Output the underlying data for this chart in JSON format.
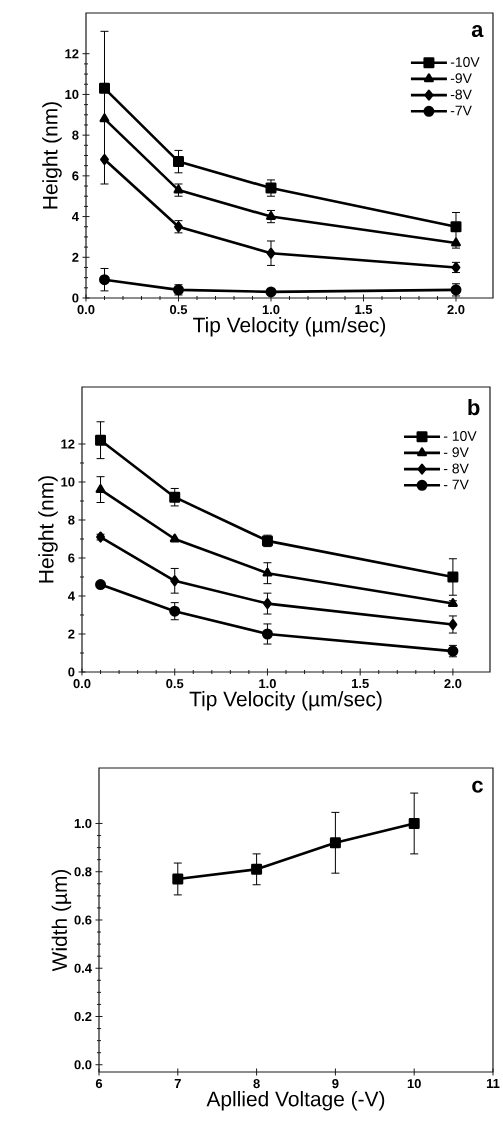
{
  "chart_data": [
    {
      "type": "line",
      "title": "a",
      "xlabel": "Tip Velocity (µm/sec)",
      "ylabel": "Height (nm)",
      "x": [
        0.1,
        0.5,
        1.0,
        2.0
      ],
      "xlim": [
        0,
        2.2
      ],
      "ylim": [
        0,
        14
      ],
      "xticks": [
        {
          "value": 0,
          "label": "0.0"
        },
        {
          "value": 0.5,
          "label": "0.5"
        },
        {
          "value": 1,
          "label": "1.0"
        },
        {
          "value": 1.5,
          "label": "1.5"
        },
        {
          "value": 2,
          "label": "2.0"
        }
      ],
      "yticks": [
        0,
        2,
        4,
        6,
        8,
        10,
        12
      ],
      "legend": "top right",
      "series": [
        {
          "name": "-10V",
          "color": "#000000",
          "marker": "square",
          "values": [
            10.3,
            6.7,
            5.4,
            3.5
          ],
          "errors": [
            [
              5.6,
              13.1
            ],
            0.55,
            0.4,
            [
              2.45,
              4.2
            ]
          ]
        },
        {
          "name": "-9V",
          "color": "#000000",
          "marker": "triangle",
          "values": [
            8.8,
            5.3,
            4.0,
            2.7
          ],
          "errors": [
            null,
            0.3,
            0.3,
            null
          ]
        },
        {
          "name": "-8V",
          "color": "#000000",
          "marker": "diamond",
          "values": [
            6.8,
            3.5,
            2.2,
            1.5
          ],
          "errors": [
            null,
            0.3,
            0.6,
            0.25
          ]
        },
        {
          "name": "-7V",
          "color": "#000000",
          "marker": "circle",
          "values": [
            0.9,
            0.4,
            0.3,
            0.4
          ],
          "errors": [
            0.55,
            0.25,
            0.12,
            0.3
          ]
        }
      ]
    },
    {
      "type": "line",
      "title": "b",
      "xlabel": "Tip Velocity (µm/sec)",
      "ylabel": "Height (nm)",
      "x": [
        0.1,
        0.5,
        1.0,
        2.0
      ],
      "xlim": [
        0,
        2.2
      ],
      "ylim": [
        0,
        15
      ],
      "xticks": [
        {
          "value": 0,
          "label": "0.0"
        },
        {
          "value": 0.5,
          "label": "0.5"
        },
        {
          "value": 1,
          "label": "1.0"
        },
        {
          "value": 1.5,
          "label": "1.5"
        },
        {
          "value": 2,
          "label": "2.0"
        }
      ],
      "yticks": [
        0,
        2,
        4,
        6,
        8,
        10,
        12
      ],
      "legend": "top right",
      "series": [
        {
          "name": "- 10V",
          "color": "#000000",
          "marker": "square",
          "values": [
            12.2,
            9.2,
            6.9,
            5.0
          ],
          "errors": [
            0.97,
            0.46,
            0.3,
            0.96
          ]
        },
        {
          "name": "- 9V",
          "color": "#000000",
          "marker": "triangle",
          "values": [
            9.6,
            7.0,
            5.2,
            3.6
          ],
          "errors": [
            0.68,
            null,
            0.55,
            0.15
          ]
        },
        {
          "name": "- 8V",
          "color": "#000000",
          "marker": "diamond",
          "values": [
            7.1,
            4.8,
            3.6,
            2.5
          ],
          "errors": [
            0.15,
            0.65,
            0.55,
            0.45
          ]
        },
        {
          "name": "- 7V",
          "color": "#000000",
          "marker": "circle",
          "values": [
            4.6,
            3.2,
            2.0,
            1.1
          ],
          "errors": [
            null,
            0.45,
            0.53,
            0.3
          ]
        }
      ]
    },
    {
      "type": "line",
      "title": "c",
      "xlabel": "Apllied Voltage (-V)",
      "ylabel": "Width (µm)",
      "x": [
        7,
        8,
        9,
        10
      ],
      "xlim": [
        6,
        11
      ],
      "ylim": [
        -0.03,
        1.23
      ],
      "xticks": [
        6,
        7,
        8,
        9,
        10,
        11
      ],
      "yticks": [
        {
          "value": 0,
          "label": "0.0"
        },
        {
          "value": 0.2,
          "label": "0.2"
        },
        {
          "value": 0.4,
          "label": "0.4"
        },
        {
          "value": 0.6,
          "label": "0.6"
        },
        {
          "value": 0.8,
          "label": "0.8"
        },
        {
          "value": 1.0,
          "label": "1.0"
        }
      ],
      "marker": "square",
      "series": [
        {
          "color": "#000000",
          "values": [
            0.77,
            0.81,
            0.92,
            1.0
          ],
          "errors": [
            0.066,
            0.064,
            0.126,
            0.126
          ]
        }
      ]
    }
  ]
}
